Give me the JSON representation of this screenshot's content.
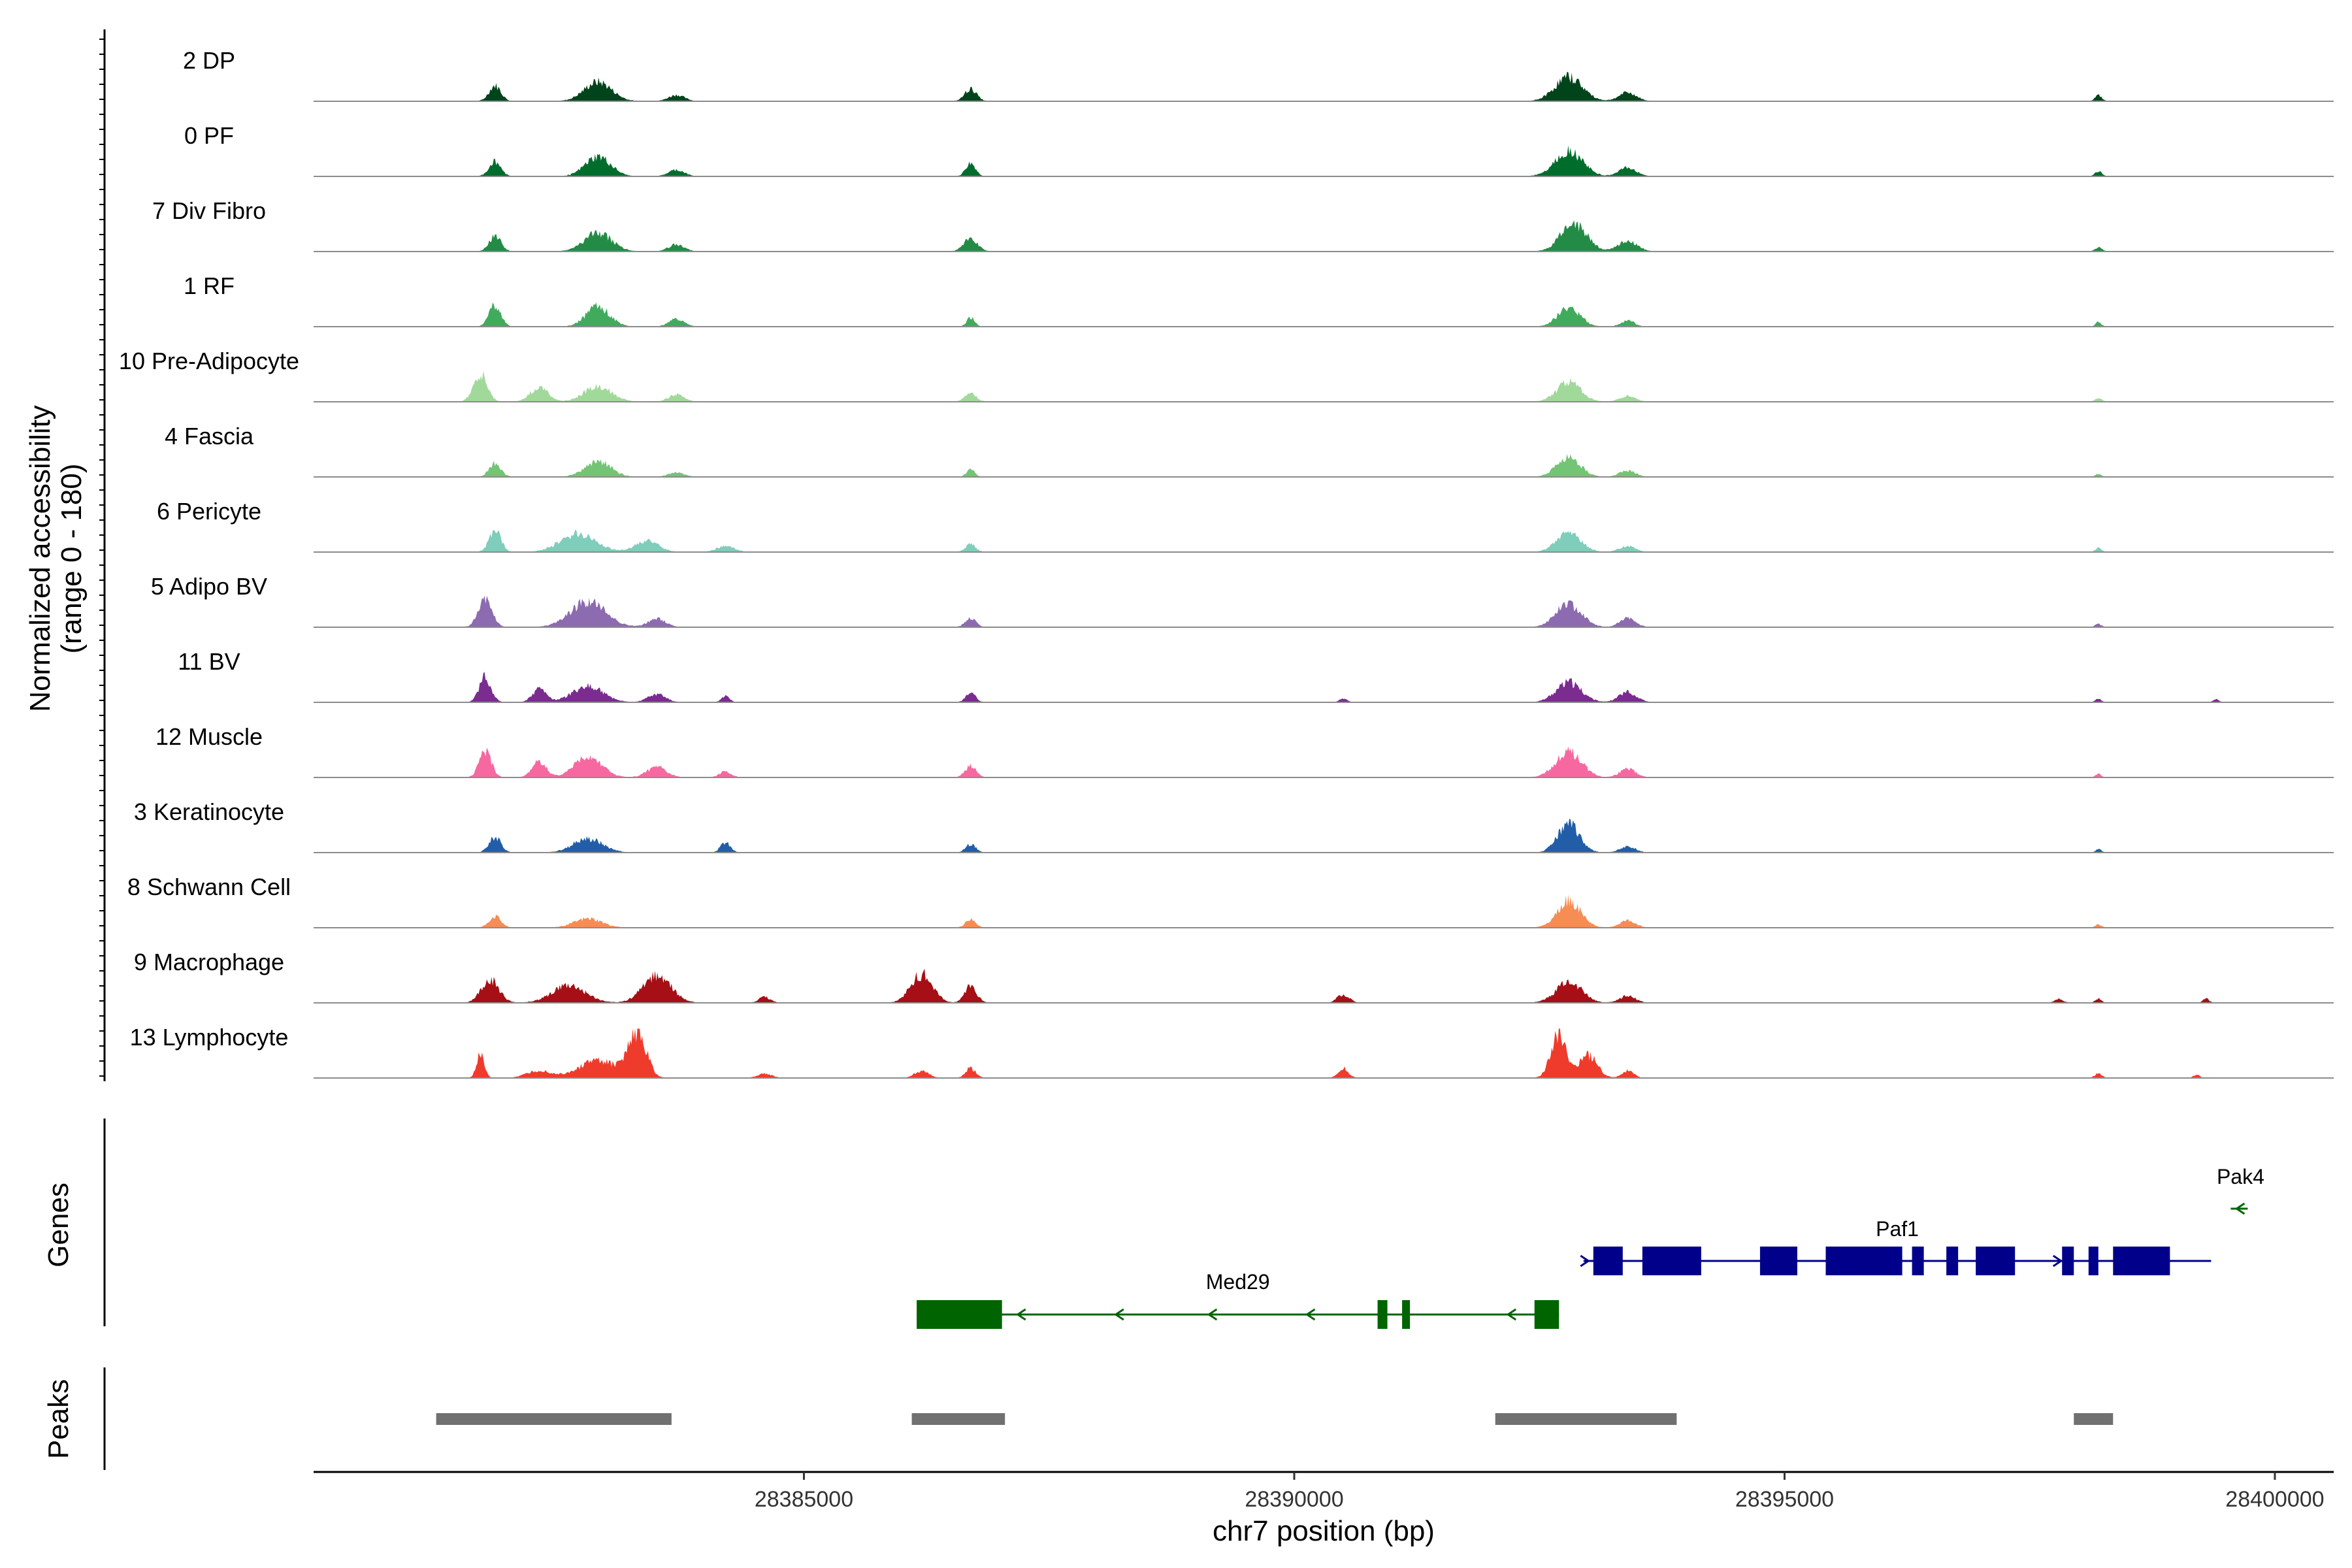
{
  "chart_data": {
    "type": "area",
    "title": "",
    "xlabel": "chr7 position (bp)",
    "ylabel": "Normalized accessibility\n(range 0 - 180)",
    "ylabel_line1": "Normalized accessibility",
    "ylabel_line2": "(range 0 - 180)",
    "ylim": [
      0,
      180
    ],
    "xlim": [
      28380000,
      28400600
    ],
    "x_ticks": [
      28385000,
      28390000,
      28395000,
      28400000
    ],
    "x_tick_labels": [
      "28385000",
      "28390000",
      "28395000",
      "28400000"
    ],
    "panel_labels": {
      "genes": "Genes",
      "peaks": "Peaks"
    },
    "series": [
      {
        "name": "2 DP",
        "color": "#00441b",
        "peaks": [
          [
            28381850,
            0.55,
            60
          ],
          [
            28382900,
            0.68,
            140
          ],
          [
            28383700,
            0.22,
            80
          ],
          [
            28386700,
            0.43,
            60
          ],
          [
            28392800,
            0.85,
            140
          ],
          [
            28393400,
            0.3,
            90
          ],
          [
            28398200,
            0.2,
            35
          ]
        ]
      },
      {
        "name": "0 PF",
        "color": "#006d2c",
        "peaks": [
          [
            28381850,
            0.52,
            60
          ],
          [
            28382900,
            0.68,
            130
          ],
          [
            28383700,
            0.22,
            80
          ],
          [
            28386700,
            0.45,
            50
          ],
          [
            28392800,
            0.9,
            140
          ],
          [
            28393400,
            0.3,
            90
          ],
          [
            28398200,
            0.18,
            35
          ]
        ]
      },
      {
        "name": "7 Div Fibro",
        "color": "#238b45",
        "peaks": [
          [
            28381850,
            0.55,
            60
          ],
          [
            28382900,
            0.65,
            140
          ],
          [
            28383700,
            0.25,
            80
          ],
          [
            28386700,
            0.45,
            70
          ],
          [
            28392850,
            1.0,
            130
          ],
          [
            28393400,
            0.35,
            100
          ],
          [
            28398200,
            0.15,
            35
          ]
        ]
      },
      {
        "name": "1 RF",
        "color": "#41ab5d",
        "peaks": [
          [
            28381850,
            0.75,
            60
          ],
          [
            28382900,
            0.7,
            120
          ],
          [
            28383700,
            0.25,
            80
          ],
          [
            28386700,
            0.32,
            40
          ],
          [
            28392800,
            0.7,
            110
          ],
          [
            28393400,
            0.2,
            70
          ],
          [
            28398200,
            0.16,
            30
          ]
        ]
      },
      {
        "name": "10 Pre-Adipocyte",
        "color": "#a1d99b",
        "peaks": [
          [
            28381700,
            1.0,
            70
          ],
          [
            28382300,
            0.5,
            90
          ],
          [
            28382900,
            0.55,
            140
          ],
          [
            28383700,
            0.25,
            80
          ],
          [
            28386700,
            0.28,
            60
          ],
          [
            28392800,
            0.7,
            120
          ],
          [
            28393400,
            0.2,
            80
          ],
          [
            28398200,
            0.12,
            35
          ]
        ]
      },
      {
        "name": "4 Fascia",
        "color": "#74c476",
        "peaks": [
          [
            28381850,
            0.48,
            60
          ],
          [
            28382900,
            0.55,
            130
          ],
          [
            28383700,
            0.15,
            80
          ],
          [
            28386700,
            0.28,
            40
          ],
          [
            28392800,
            0.68,
            120
          ],
          [
            28393400,
            0.22,
            80
          ],
          [
            28398200,
            0.1,
            30
          ]
        ]
      },
      {
        "name": "6 Pericyte",
        "color": "#7fcdbb",
        "peaks": [
          [
            28381850,
            0.75,
            60
          ],
          [
            28382700,
            0.65,
            180
          ],
          [
            28383400,
            0.38,
            120
          ],
          [
            28384200,
            0.2,
            90
          ],
          [
            28386700,
            0.28,
            50
          ],
          [
            28392800,
            0.7,
            120
          ],
          [
            28393400,
            0.2,
            80
          ],
          [
            28398200,
            0.15,
            30
          ]
        ]
      },
      {
        "name": "5 Adipo BV",
        "color": "#8c6bb1",
        "peaks": [
          [
            28381750,
            0.95,
            70
          ],
          [
            28382800,
            0.9,
            180
          ],
          [
            28383500,
            0.3,
            90
          ],
          [
            28386700,
            0.32,
            55
          ],
          [
            28392800,
            0.82,
            130
          ],
          [
            28393400,
            0.3,
            80
          ],
          [
            28398200,
            0.12,
            30
          ]
        ]
      },
      {
        "name": "11 BV",
        "color": "#7a2c8f",
        "peaks": [
          [
            28381750,
            0.9,
            60
          ],
          [
            28382300,
            0.45,
            70
          ],
          [
            28382800,
            0.55,
            160
          ],
          [
            28383500,
            0.28,
            90
          ],
          [
            28384200,
            0.22,
            40
          ],
          [
            28386700,
            0.35,
            50
          ],
          [
            28390500,
            0.12,
            40
          ],
          [
            28392800,
            0.7,
            130
          ],
          [
            28393400,
            0.35,
            90
          ],
          [
            28398200,
            0.12,
            30
          ],
          [
            28399400,
            0.1,
            30
          ]
        ]
      },
      {
        "name": "12 Muscle",
        "color": "#f768a1",
        "peaks": [
          [
            28381750,
            0.95,
            60
          ],
          [
            28382300,
            0.55,
            70
          ],
          [
            28382800,
            0.7,
            140
          ],
          [
            28383500,
            0.35,
            100
          ],
          [
            28384200,
            0.2,
            60
          ],
          [
            28386700,
            0.4,
            55
          ],
          [
            28392800,
            0.9,
            130
          ],
          [
            28393400,
            0.3,
            80
          ],
          [
            28398200,
            0.12,
            30
          ]
        ]
      },
      {
        "name": "3 Keratinocyte",
        "color": "#225ea8",
        "peaks": [
          [
            28381850,
            0.55,
            60
          ],
          [
            28382800,
            0.5,
            150
          ],
          [
            28384200,
            0.35,
            50
          ],
          [
            28386700,
            0.3,
            50
          ],
          [
            28392800,
            1.0,
            110
          ],
          [
            28393400,
            0.2,
            80
          ],
          [
            28398200,
            0.12,
            30
          ]
        ]
      },
      {
        "name": "8 Schwann Cell",
        "color": "#f58d55",
        "peaks": [
          [
            28381850,
            0.4,
            60
          ],
          [
            28382800,
            0.32,
            140
          ],
          [
            28386700,
            0.3,
            50
          ],
          [
            28392800,
            0.95,
            120
          ],
          [
            28393400,
            0.25,
            80
          ],
          [
            28398200,
            0.12,
            30
          ]
        ]
      },
      {
        "name": "9 Macrophage",
        "color": "#a50f15",
        "peaks": [
          [
            28381800,
            0.8,
            90
          ],
          [
            28382600,
            0.6,
            170
          ],
          [
            28383500,
            1.0,
            140
          ],
          [
            28384600,
            0.2,
            60
          ],
          [
            28386200,
            1.0,
            110
          ],
          [
            28386700,
            0.6,
            60
          ],
          [
            28390500,
            0.3,
            60
          ],
          [
            28392800,
            0.75,
            130
          ],
          [
            28393400,
            0.25,
            80
          ],
          [
            28397800,
            0.15,
            40
          ],
          [
            28398200,
            0.15,
            30
          ],
          [
            28399300,
            0.15,
            30
          ]
        ]
      },
      {
        "name": "13 Lymphocyte",
        "color": "#ef3b2c",
        "peaks": [
          [
            28381700,
            0.8,
            40
          ],
          [
            28382300,
            0.25,
            120
          ],
          [
            28382900,
            0.6,
            200
          ],
          [
            28383300,
            1.6,
            90
          ],
          [
            28384600,
            0.15,
            70
          ],
          [
            28386200,
            0.25,
            70
          ],
          [
            28386700,
            0.35,
            50
          ],
          [
            28390500,
            0.35,
            50
          ],
          [
            28392700,
            1.55,
            80
          ],
          [
            28393000,
            0.8,
            90
          ],
          [
            28393400,
            0.25,
            60
          ],
          [
            28398200,
            0.15,
            35
          ],
          [
            28399200,
            0.12,
            30
          ]
        ]
      }
    ],
    "genes": [
      {
        "name": "Med29",
        "strand": "-",
        "color": "#006400",
        "start": 28386150,
        "end": 28392700,
        "exons": [
          [
            28386150,
            28387020
          ],
          [
            28390850,
            28390950
          ],
          [
            28391100,
            28391180
          ],
          [
            28392450,
            28392700
          ]
        ],
        "arrow_positions": [
          28387200,
          28388200,
          28389150,
          28390150,
          28392200
        ]
      },
      {
        "name": "Paf1",
        "strand": "+",
        "color": "#00008b",
        "start": 28392950,
        "end": 28399350,
        "exons": [
          [
            28393050,
            28393350
          ],
          [
            28393550,
            28394150
          ],
          [
            28394750,
            28395130
          ],
          [
            28395420,
            28396200
          ],
          [
            28396300,
            28396420
          ],
          [
            28396650,
            28396770
          ],
          [
            28396950,
            28397350
          ],
          [
            28397830,
            28397950
          ],
          [
            28398100,
            28398200
          ],
          [
            28398350,
            28398930
          ]
        ],
        "arrow_positions": [
          28392980,
          28397800
        ]
      },
      {
        "name": "Pak4",
        "strand": "-",
        "color": "#006400",
        "start": 28399550,
        "end": 28399750,
        "exons": [],
        "arrow_positions": [
          28399630
        ]
      }
    ],
    "peaks_track": [
      [
        28381250,
        28383650
      ],
      [
        28386100,
        28387050
      ],
      [
        28392050,
        28393900
      ],
      [
        28397950,
        28398350
      ]
    ]
  }
}
